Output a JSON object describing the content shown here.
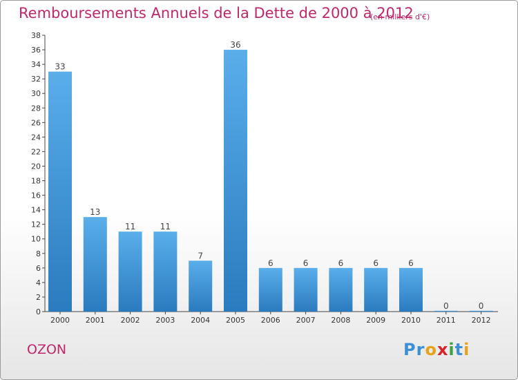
{
  "header": {
    "title": "Remboursements Annuels de la Dette de 2000 à 2012",
    "subtitle": "(en milliers d'€)"
  },
  "footer": {
    "commune": "OZON",
    "logo_letters": [
      {
        "ch": "P",
        "color": "#3a8fd6"
      },
      {
        "ch": "r",
        "color": "#3a8fd6"
      },
      {
        "ch": "o",
        "color": "#e8a21a"
      },
      {
        "ch": "x",
        "color": "#d8232a"
      },
      {
        "ch": "i",
        "color": "#3aa23a"
      },
      {
        "ch": "t",
        "color": "#3a8fd6"
      },
      {
        "ch": "i",
        "color": "#e8a21a"
      }
    ]
  },
  "colors": {
    "accent": "#c0266a",
    "bar_top": "#5aaeea",
    "bar_bottom": "#2a7bbf"
  },
  "chart_data": {
    "type": "bar",
    "title": "Remboursements Annuels de la Dette de 2000 à 2012",
    "subtitle": "(en milliers d'€)",
    "xlabel": "",
    "ylabel": "",
    "categories": [
      "2000",
      "2001",
      "2002",
      "2003",
      "2004",
      "2005",
      "2006",
      "2007",
      "2008",
      "2009",
      "2010",
      "2011",
      "2012"
    ],
    "values": [
      33,
      13,
      11,
      11,
      7,
      36,
      6,
      6,
      6,
      6,
      6,
      0,
      0
    ],
    "data_labels": [
      "33",
      "13",
      "11",
      "11",
      "7",
      "36",
      "6",
      "6",
      "6",
      "6",
      "6",
      "0",
      "0"
    ],
    "ylim": [
      0,
      38
    ],
    "yticks": [
      0,
      2,
      4,
      6,
      8,
      10,
      12,
      14,
      16,
      18,
      20,
      22,
      24,
      26,
      28,
      30,
      32,
      34,
      36,
      38
    ],
    "grid": false,
    "legend": "none"
  }
}
